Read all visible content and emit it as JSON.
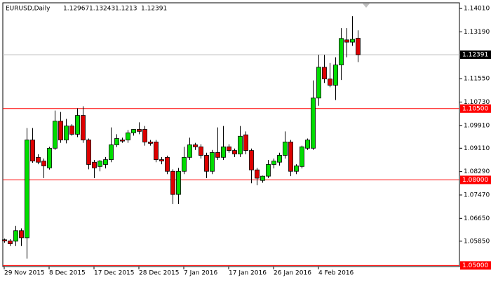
{
  "chart_data": {
    "type": "candlestick",
    "symbol": "EURUSD,Daily",
    "up_color": "#00dd00",
    "down_color": "#dd0000",
    "categories": [
      "29 Nov 2015",
      null,
      null,
      null,
      null,
      null,
      null,
      null,
      "8 Dec 2015",
      null,
      null,
      null,
      null,
      null,
      null,
      null,
      "17 Dec 2015",
      null,
      null,
      null,
      null,
      null,
      null,
      null,
      "28 Dec 2015",
      null,
      null,
      null,
      null,
      null,
      null,
      null,
      "7 Jan 2016",
      null,
      null,
      null,
      null,
      null,
      null,
      null,
      "17 Jan 2016",
      null,
      null,
      null,
      null,
      null,
      null,
      null,
      "26 Jan 2016",
      null,
      null,
      null,
      null,
      null,
      null,
      null,
      "4 Feb 2016",
      null,
      null,
      null,
      null,
      null,
      null,
      null
    ],
    "open": [
      1.059,
      1.0586,
      1.0585,
      1.0622,
      1.0597,
      1.094,
      1.0879,
      1.0866,
      1.0842,
      1.0911,
      1.1006,
      1.094,
      1.0989,
      1.096,
      1.1026,
      1.094,
      1.0862,
      1.0847,
      1.0854,
      1.0871,
      1.0923,
      1.094,
      1.094,
      1.0965,
      1.0977,
      1.0977,
      1.0933,
      1.0933,
      1.0871,
      1.0879,
      1.083,
      1.0749,
      1.083,
      1.0879,
      1.0923,
      1.0916,
      1.0886,
      1.083,
      1.0896,
      1.0879,
      1.0916,
      1.0903,
      1.0891,
      1.0958,
      1.0903,
      1.0835,
      1.0798,
      1.0813,
      1.0854,
      1.0862,
      1.0886,
      1.0933,
      1.083,
      1.0847,
      1.0911,
      1.0911,
      1.1087,
      1.1195,
      1.1154,
      1.1132,
      1.1203,
      1.1291,
      1.1283,
      1.12967
    ],
    "high": [
      1.0594,
      1.0592,
      1.0639,
      1.063,
      1.0982,
      1.0982,
      1.089,
      1.0875,
      1.0916,
      1.1043,
      1.1038,
      1.1014,
      1.0995,
      1.1051,
      1.1058,
      1.0945,
      1.087,
      1.087,
      1.088,
      1.0984,
      1.096,
      1.0948,
      1.0975,
      1.0978,
      1.1002,
      1.0989,
      1.094,
      1.094,
      1.088,
      1.0885,
      1.0837,
      1.0842,
      1.0916,
      1.0948,
      1.093,
      1.0925,
      1.0895,
      1.0905,
      1.0984,
      1.0989,
      1.0925,
      1.091,
      1.0989,
      1.097,
      1.091,
      1.0842,
      1.0815,
      1.087,
      1.0875,
      1.0895,
      1.097,
      1.094,
      1.0855,
      1.092,
      1.0945,
      1.1149,
      1.1239,
      1.1239,
      1.121,
      1.123,
      1.1332,
      1.1332,
      1.1374,
      1.13243
    ],
    "low": [
      1.058,
      1.0568,
      1.0568,
      1.0568,
      1.0524,
      1.086,
      1.0855,
      1.0806,
      1.0836,
      1.0905,
      1.093,
      1.0928,
      1.0955,
      1.095,
      1.093,
      1.0837,
      1.0806,
      1.083,
      1.084,
      1.0862,
      1.0915,
      1.093,
      1.093,
      1.0955,
      1.096,
      1.092,
      1.092,
      1.0862,
      1.0855,
      1.082,
      1.0715,
      1.0715,
      1.082,
      1.087,
      1.0905,
      1.0875,
      1.0806,
      1.082,
      1.087,
      1.087,
      1.0895,
      1.088,
      1.088,
      1.089,
      1.0788,
      1.0781,
      1.079,
      1.0806,
      1.084,
      1.085,
      1.0875,
      1.0813,
      1.082,
      1.084,
      1.0905,
      1.0905,
      1.106,
      1.114,
      1.1125,
      1.108,
      1.115,
      1.123,
      1.127,
      1.1213
    ],
    "close": [
      1.0586,
      1.0576,
      1.0622,
      1.0597,
      1.094,
      1.0866,
      1.0862,
      1.0849,
      1.0911,
      1.1006,
      1.094,
      1.0989,
      1.096,
      1.1026,
      1.094,
      1.0854,
      1.0842,
      1.0866,
      1.0871,
      1.0923,
      1.0945,
      1.0936,
      1.0965,
      1.0977,
      1.097,
      1.0933,
      1.0928,
      1.0871,
      1.0866,
      1.083,
      1.0749,
      1.083,
      1.0879,
      1.0923,
      1.0916,
      1.0886,
      1.083,
      1.0896,
      1.0879,
      1.0916,
      1.0903,
      1.0891,
      1.0953,
      1.0903,
      1.0835,
      1.0806,
      1.0813,
      1.0854,
      1.0866,
      1.0886,
      1.0933,
      1.083,
      1.0849,
      1.0916,
      1.094,
      1.1087,
      1.1195,
      1.1154,
      1.1132,
      1.1203,
      1.1296,
      1.1283,
      1.1293,
      1.12391
    ],
    "ylim": [
      1.0496,
      1.1421
    ],
    "yticks": [
      {
        "value": 1.1401,
        "label": "1.14010"
      },
      {
        "value": 1.1319,
        "label": "1.13190"
      },
      {
        "value": 1.1155,
        "label": "1.11550"
      },
      {
        "value": 1.1073,
        "label": "1.10730"
      },
      {
        "value": 1.0991,
        "label": "1.09910"
      },
      {
        "value": 1.0911,
        "label": "1.09110"
      },
      {
        "value": 1.0829,
        "label": "1.08290"
      },
      {
        "value": 1.0747,
        "label": "1.07470"
      },
      {
        "value": 1.0665,
        "label": "1.06650"
      },
      {
        "value": 1.0585,
        "label": "1.05850"
      }
    ],
    "levels": [
      {
        "value": 1.105,
        "label": "1.10500",
        "color": "#ff0000"
      },
      {
        "value": 1.08,
        "label": "1.08000",
        "color": "#ff0000"
      },
      {
        "value": 1.05,
        "label": "1.05000",
        "color": "#ff0000"
      }
    ]
  }
}
